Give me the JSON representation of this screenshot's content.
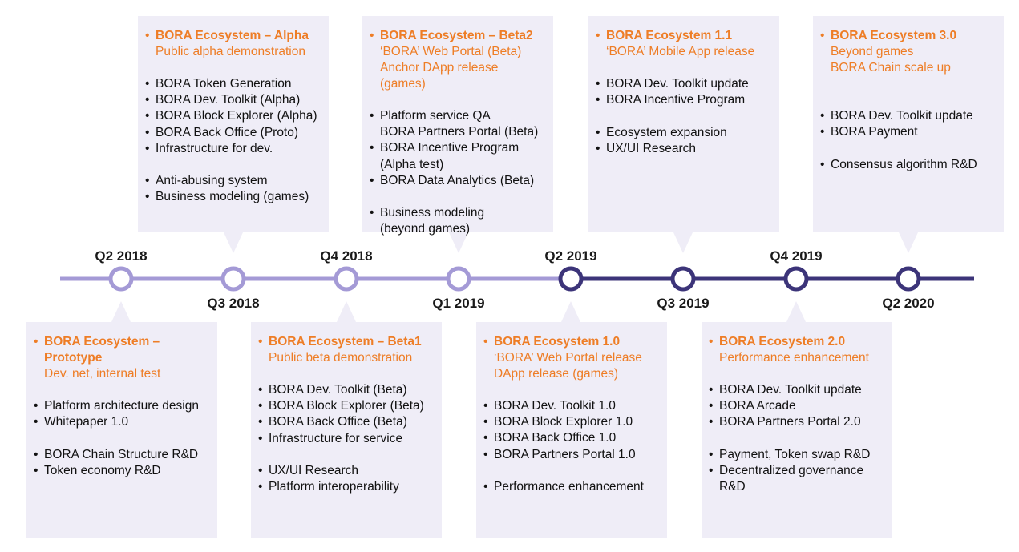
{
  "colors": {
    "light_line": "#a49ad6",
    "dark_line": "#3c3479",
    "card_bg": "#efedf7",
    "accent": "#ee7d26"
  },
  "timeline": {
    "milestones": [
      {
        "label": "Q2 2018",
        "phase": "past"
      },
      {
        "label": "Q3 2018",
        "phase": "past"
      },
      {
        "label": "Q4 2018",
        "phase": "past"
      },
      {
        "label": "Q1 2019",
        "phase": "past"
      },
      {
        "label": "Q2 2019",
        "phase": "future"
      },
      {
        "label": "Q3 2019",
        "phase": "future"
      },
      {
        "label": "Q4 2019",
        "phase": "future"
      },
      {
        "label": "Q2 2020",
        "phase": "future"
      }
    ]
  },
  "cards": [
    {
      "id": "prototype",
      "title": [
        "BORA Ecosystem –",
        "Prototype"
      ],
      "subtitle": [
        "Dev. net, internal test"
      ],
      "items": [
        {
          "t": "Platform architecture design"
        },
        {
          "t": "Whitepaper 1.0"
        },
        {
          "gap": true
        },
        {
          "t": "BORA Chain Structure R&D"
        },
        {
          "t": "Token economy R&D"
        }
      ]
    },
    {
      "id": "alpha",
      "title": [
        "BORA Ecosystem – Alpha"
      ],
      "subtitle": [
        "Public alpha demonstration"
      ],
      "items": [
        {
          "t": "BORA Token Generation"
        },
        {
          "t": "BORA Dev. Toolkit (Alpha)"
        },
        {
          "t": "BORA Block Explorer (Alpha)"
        },
        {
          "t": "BORA Back Office (Proto)"
        },
        {
          "t": "Infrastructure for dev."
        },
        {
          "gap": true
        },
        {
          "t": "Anti-abusing system"
        },
        {
          "t": "Business modeling (games)"
        }
      ]
    },
    {
      "id": "beta1",
      "title": [
        "BORA Ecosystem – Beta1"
      ],
      "subtitle": [
        "Public beta demonstration"
      ],
      "items": [
        {
          "t": "BORA Dev. Toolkit (Beta)"
        },
        {
          "t": "BORA Block Explorer (Beta)"
        },
        {
          "t": "BORA Back Office (Beta)"
        },
        {
          "t": "Infrastructure for service"
        },
        {
          "gap": true
        },
        {
          "t": "UX/UI Research"
        },
        {
          "t": "Platform interoperability"
        }
      ]
    },
    {
      "id": "beta2",
      "title": [
        "BORA Ecosystem – Beta2"
      ],
      "subtitle": [
        "‘BORA’ Web Portal (Beta)",
        "Anchor DApp release (games)"
      ],
      "items": [
        {
          "t": "Platform service QA"
        },
        {
          "t": "BORA Partners Portal (Beta)",
          "cont": true
        },
        {
          "t": "BORA Incentive Program"
        },
        {
          "t": "(Alpha test)",
          "cont": true
        },
        {
          "t": "BORA Data Analytics (Beta)"
        },
        {
          "gap": true
        },
        {
          "t": "Business modeling"
        },
        {
          "t": "(beyond games)",
          "cont": true
        }
      ]
    },
    {
      "id": "eco10",
      "title": [
        "BORA Ecosystem 1.0"
      ],
      "subtitle": [
        "‘BORA’ Web Portal release",
        "DApp release (games)"
      ],
      "items": [
        {
          "t": "BORA Dev. Toolkit 1.0"
        },
        {
          "t": "BORA Block Explorer 1.0"
        },
        {
          "t": "BORA Back Office 1.0"
        },
        {
          "t": "BORA Partners Portal 1.0"
        },
        {
          "gap": true
        },
        {
          "t": "Performance enhancement"
        }
      ]
    },
    {
      "id": "eco11",
      "title": [
        "BORA Ecosystem 1.1"
      ],
      "subtitle": [
        "‘BORA’ Mobile App release"
      ],
      "items": [
        {
          "t": "BORA Dev. Toolkit update"
        },
        {
          "t": "BORA Incentive Program"
        },
        {
          "gap": true
        },
        {
          "t": "Ecosystem expansion"
        },
        {
          "t": "UX/UI Research"
        }
      ]
    },
    {
      "id": "eco20",
      "title": [
        "BORA Ecosystem 2.0"
      ],
      "subtitle": [
        "Performance enhancement"
      ],
      "items": [
        {
          "t": "BORA Dev. Toolkit update"
        },
        {
          "t": "BORA Arcade"
        },
        {
          "t": "BORA Partners Portal 2.0"
        },
        {
          "gap": true
        },
        {
          "t": "Payment, Token swap R&D"
        },
        {
          "t": "Decentralized governance"
        },
        {
          "t": "R&D",
          "cont": true
        }
      ]
    },
    {
      "id": "eco30",
      "title": [
        "BORA Ecosystem 3.0"
      ],
      "subtitle": [
        "Beyond games",
        "BORA Chain scale up"
      ],
      "items": [
        {
          "gap": true
        },
        {
          "t": "BORA Dev. Toolkit update"
        },
        {
          "t": "BORA Payment"
        },
        {
          "gap": true
        },
        {
          "t": "Consensus algorithm R&D"
        }
      ]
    }
  ]
}
